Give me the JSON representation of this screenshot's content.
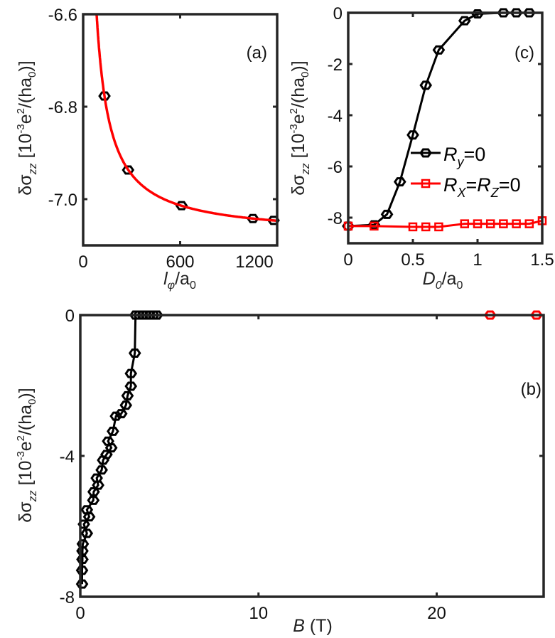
{
  "colors": {
    "black_series": "#000000",
    "red_series": "#ff0000",
    "axis": "#262626"
  },
  "chart_data": [
    {
      "type": "scatter+line",
      "panel_label": "(a)",
      "xlabel": "l_φ/a_0",
      "ylabel": "δσ_zz [10^-3 e^2/(ha_0)]",
      "xlim": [
        0,
        1200
      ],
      "ylim": [
        -7.1,
        -6.6
      ],
      "xticks": [
        0,
        600,
        1200
      ],
      "xtick_labels": [
        "0",
        "600",
        "1200"
      ],
      "yticks": [
        -6.6,
        -6.8,
        -7.0
      ],
      "ytick_labels": [
        "-6.6",
        "-6.8",
        "-7.0"
      ],
      "grid": false,
      "series": [
        {
          "kind": "markers",
          "marker": "hexagon",
          "color": "#000000",
          "x": [
            132,
            278,
            609,
            1050,
            1178
          ],
          "y": [
            -6.777,
            -6.937,
            -7.014,
            -7.042,
            -7.046
          ]
        },
        {
          "kind": "fit-line",
          "color": "#ff0000",
          "form": "y = a + b/x",
          "a": -7.08,
          "b": 40,
          "x_range": [
            83,
            1200
          ]
        }
      ]
    },
    {
      "type": "line",
      "panel_label": "(c)",
      "xlabel": "D_0/a_0",
      "ylabel": "δσ_zz [10^-3 e^2/(ha_0)]",
      "xlim": [
        0,
        1.5
      ],
      "ylim": [
        -9,
        0
      ],
      "xticks": [
        0,
        0.5,
        1,
        1.5
      ],
      "xtick_labels": [
        "0",
        "0.5",
        "1",
        "1.5"
      ],
      "yticks": [
        0,
        -2,
        -4,
        -6,
        -8
      ],
      "ytick_labels": [
        "0",
        "-2",
        "-4",
        "-6",
        "-8"
      ],
      "grid": false,
      "legend": {
        "placement": "center-right",
        "entries": [
          {
            "label_main": "R",
            "label_sub": "y",
            "label_rest": "=0"
          },
          {
            "label": "R_X=R_Z=0"
          }
        ]
      },
      "legend_text": {
        "ry": {
          "R": "R",
          "sub": "y",
          "rest": "=0"
        },
        "rxz": {
          "R1": "R",
          "sub1": "X",
          "eq": "=",
          "R2": "R",
          "sub2": "Z",
          "rest": "=0"
        }
      },
      "series": [
        {
          "name": "R_y=0",
          "marker": "hexagon",
          "color": "#000000",
          "x": [
            0,
            0.2,
            0.3,
            0.4,
            0.5,
            0.6,
            0.7,
            0.9,
            1.0,
            1.2,
            1.3,
            1.4
          ],
          "y": [
            -8.33,
            -8.28,
            -7.87,
            -6.6,
            -4.77,
            -2.83,
            -1.45,
            -0.31,
            -0.04,
            0,
            0,
            0
          ]
        },
        {
          "name": "R_X=R_Z=0",
          "marker": "square",
          "color": "#ff0000",
          "x": [
            0,
            0.2,
            0.5,
            0.6,
            0.7,
            0.9,
            1.0,
            1.1,
            1.2,
            1.3,
            1.4,
            1.5
          ],
          "y": [
            -8.33,
            -8.33,
            -8.36,
            -8.36,
            -8.36,
            -8.24,
            -8.24,
            -8.24,
            -8.24,
            -8.24,
            -8.24,
            -8.12
          ]
        }
      ]
    },
    {
      "type": "line",
      "panel_label": "(b)",
      "xlabel": "B (T)",
      "xlabel_parts": {
        "var": "B",
        "unit": " (T)"
      },
      "ylabel": "δσ_zz [10^-3 e^2/(ha_0)]",
      "xlim": [
        0,
        26
      ],
      "ylim": [
        -8,
        0
      ],
      "xticks": [
        0,
        10,
        20
      ],
      "xtick_labels": [
        "0",
        "10",
        "20"
      ],
      "yticks": [
        0,
        -4,
        -8
      ],
      "ytick_labels": [
        "0",
        "-4",
        "-8"
      ],
      "grid": false,
      "series": [
        {
          "marker": "hexagon",
          "color": "#000000",
          "x": [
            0.1,
            0.1,
            0.12,
            0.12,
            0.14,
            0.37,
            0.2,
            0.5,
            0.37,
            0.73,
            0.75,
            1.0,
            0.92,
            1.2,
            1.28,
            1.47,
            1.74,
            1.56,
            1.83,
            2.0,
            2.3,
            2.56,
            2.65,
            2.84,
            2.84,
            3.06,
            3.1,
            3.3,
            3.5,
            3.7,
            3.9,
            4.1,
            4.3
          ],
          "y": [
            -7.64,
            -7.25,
            -6.94,
            -6.7,
            -6.5,
            -6.2,
            -5.94,
            -5.73,
            -5.53,
            -5.26,
            -5.02,
            -4.83,
            -4.63,
            -4.4,
            -4.12,
            -3.96,
            -3.77,
            -3.58,
            -3.3,
            -2.87,
            -2.8,
            -2.56,
            -2.29,
            -2.02,
            -1.66,
            -1.08,
            0,
            0,
            0,
            0,
            0,
            0,
            0
          ]
        },
        {
          "marker": "hexagon",
          "color": "#ff0000",
          "x": [
            23.0,
            25.6
          ],
          "y": [
            0,
            0
          ]
        }
      ]
    }
  ],
  "ylabel_parts": {
    "delta_sigma": "δσ",
    "sub": "zz",
    "bracket": " [10",
    "exp": "-3",
    "e": "e",
    "e_exp": "2",
    "tail": "/(ha",
    "a_sub": "0",
    "close": ")]"
  },
  "xlabel_a_parts": {
    "l": "l",
    "sub": "φ",
    "rest": "/a",
    "a_sub": "0"
  },
  "xlabel_c_parts": {
    "D": "D",
    "sub": "0",
    "rest": "/a",
    "a_sub": "0"
  }
}
